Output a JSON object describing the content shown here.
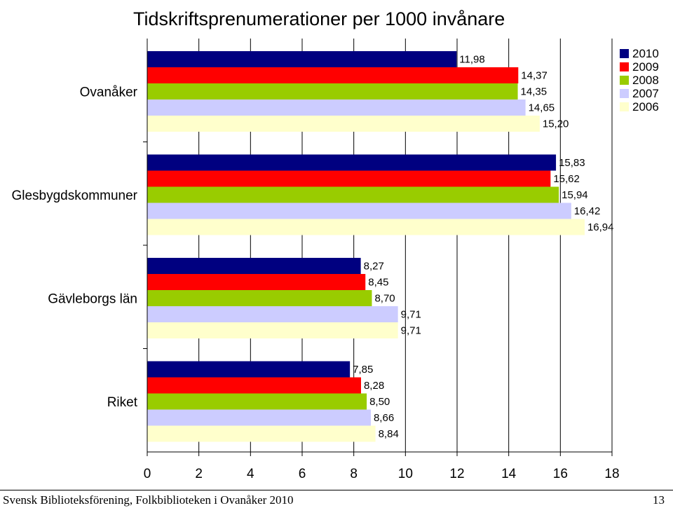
{
  "chart_data": {
    "type": "bar",
    "orientation": "horizontal",
    "title": "Tidskriftsprenumerationer per 1000 invånare",
    "categories": [
      "Ovanåker",
      "Glesbygdskommuner",
      "Gävleborgs län",
      "Riket"
    ],
    "series": [
      {
        "name": "2010",
        "color": "#000080",
        "values": [
          11.98,
          15.83,
          8.27,
          7.85
        ],
        "labels": [
          "11,98",
          "15,83",
          "8,27",
          "7,85"
        ]
      },
      {
        "name": "2009",
        "color": "#ff0000",
        "values": [
          14.37,
          15.62,
          8.45,
          8.28
        ],
        "labels": [
          "14,37",
          "15,62",
          "8,45",
          "8,28"
        ]
      },
      {
        "name": "2008",
        "color": "#99cc00",
        "values": [
          14.35,
          15.94,
          8.7,
          8.5
        ],
        "labels": [
          "14,35",
          "15,94",
          "8,70",
          "8,50"
        ]
      },
      {
        "name": "2007",
        "color": "#ccccff",
        "values": [
          14.65,
          16.42,
          9.71,
          8.66
        ],
        "labels": [
          "14,65",
          "16,42",
          "9,71",
          "8,66"
        ]
      },
      {
        "name": "2006",
        "color": "#ffffcc",
        "values": [
          15.2,
          16.94,
          9.71,
          8.84
        ],
        "labels": [
          "15,20",
          "16,94",
          "9,71",
          "8,84"
        ]
      }
    ],
    "xlim": [
      0,
      18
    ],
    "xticks": [
      0,
      2,
      4,
      6,
      8,
      10,
      12,
      14,
      16,
      18
    ],
    "grid": "vertical",
    "legend_position": "top-right",
    "xlabel": "",
    "ylabel": ""
  },
  "footer": {
    "left": "Svensk Biblioteksförening, Folkbiblioteken i Ovanåker 2010",
    "page_number": "13"
  }
}
